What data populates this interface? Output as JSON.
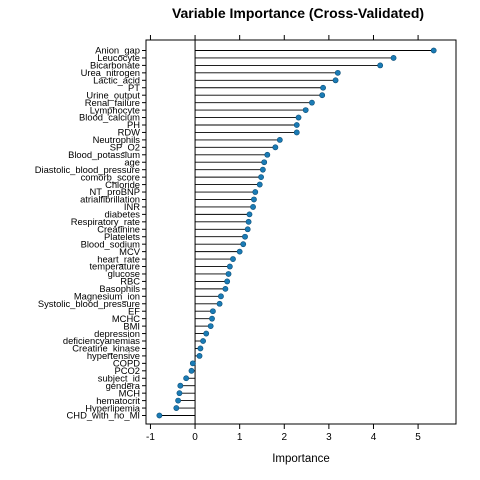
{
  "chart_data": {
    "type": "dotplot",
    "title": "Variable Importance (Cross-Validated)",
    "xlabel": "Importance",
    "ylabel": "",
    "xlim": [
      -1.1,
      5.85
    ],
    "x_ticks": [
      -1,
      0,
      1,
      2,
      3,
      4,
      5
    ],
    "reference_line": 0,
    "grid": false,
    "point_color": "#1a7bb5",
    "categories": [
      "Anion_gap",
      "Leucocyte",
      "Bicarbonate",
      "Urea_nitrogen",
      "Lactic_acid",
      "PT",
      "Urine_output",
      "Renal_failure",
      "Lymphocyte",
      "Blood_calcium",
      "PH",
      "RDW",
      "Neutrophils",
      "SP_O2",
      "Blood_potassium",
      "age",
      "Diastolic_blood_pressure",
      "comorb_score",
      "Chloride",
      "NT_proBNP",
      "atrialfibrillation",
      "INR",
      "diabetes",
      "Respiratory_rate",
      "Creatinine",
      "Platelets",
      "Blood_sodium",
      "MCV",
      "heart_rate",
      "temperature",
      "glucose",
      "RBC",
      "Basophils",
      "Magnesium_ion",
      "Systolic_blood_pressure",
      "EF",
      "MCHC",
      "BMI",
      "depression",
      "deficiencyanemias",
      "Creatine_kinase",
      "hypertensive",
      "COPD",
      "PCO2",
      "subject_id",
      "gendera",
      "MCH",
      "hematocrit",
      "Hyperlipemia",
      "CHD_with_no_MI"
    ],
    "values": [
      5.35,
      4.45,
      4.15,
      3.2,
      3.15,
      2.87,
      2.85,
      2.62,
      2.48,
      2.32,
      2.28,
      2.28,
      1.9,
      1.8,
      1.62,
      1.55,
      1.52,
      1.48,
      1.45,
      1.35,
      1.32,
      1.3,
      1.22,
      1.2,
      1.18,
      1.12,
      1.08,
      1.0,
      0.85,
      0.78,
      0.75,
      0.72,
      0.68,
      0.58,
      0.55,
      0.4,
      0.38,
      0.35,
      0.25,
      0.18,
      0.12,
      0.1,
      -0.05,
      -0.08,
      -0.2,
      -0.33,
      -0.35,
      -0.38,
      -0.42,
      -0.8
    ]
  }
}
